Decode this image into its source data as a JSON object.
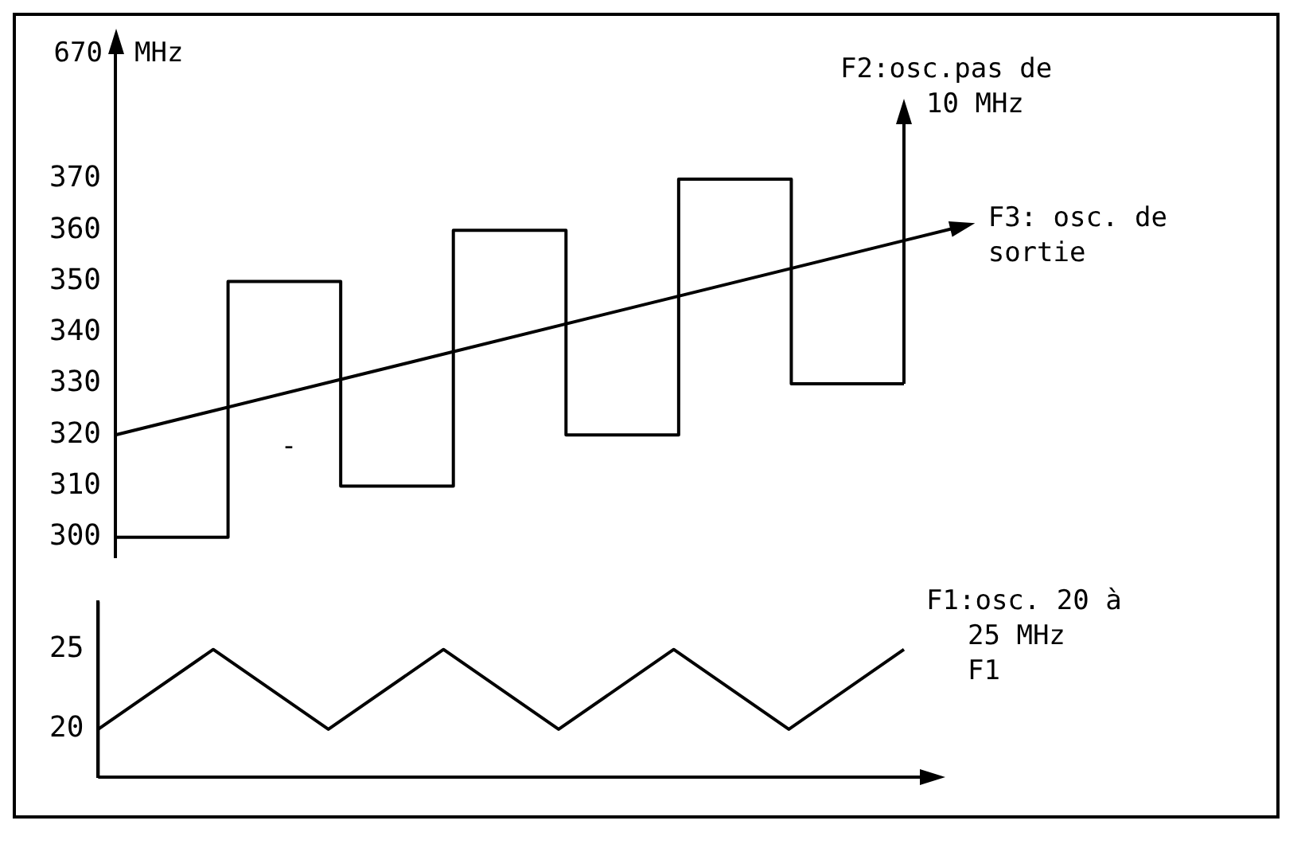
{
  "chart_data": [
    {
      "type": "line",
      "ylabel": "MHz",
      "categories": [
        null,
        null,
        null,
        null,
        null,
        null,
        null,
        null
      ],
      "ylim": [
        296,
        382
      ],
      "yticks": [
        300,
        310,
        320,
        330,
        340,
        350,
        360,
        370
      ],
      "tick_labels": "y",
      "grid": false,
      "legend": "right",
      "annotations": [
        "670",
        "-"
      ],
      "series": [
        {
          "type": "step",
          "name": "F2:osc.pas de 10 MHz",
          "color": "#000000",
          "values": [
            300,
            350,
            310,
            360,
            320,
            370,
            330,
            330
          ]
        },
        {
          "name": "F3: osc. de sortie",
          "color": "#000000",
          "values": [
            320,
            null,
            null,
            null,
            null,
            null,
            null,
            358
          ]
        }
      ]
    },
    {
      "type": "line",
      "categories": [
        null,
        null,
        null,
        null,
        null,
        null,
        null,
        null
      ],
      "ylim": [
        17,
        28
      ],
      "yticks": [
        20,
        25
      ],
      "tick_labels": "y",
      "grid": false,
      "legend": "right",
      "annotations": [
        "F1"
      ],
      "series": [
        {
          "name": "F1:osc. 20 à 25 MHz",
          "color": "#000000",
          "values": [
            20,
            25,
            20,
            25,
            20,
            25,
            20,
            25
          ]
        }
      ]
    }
  ]
}
